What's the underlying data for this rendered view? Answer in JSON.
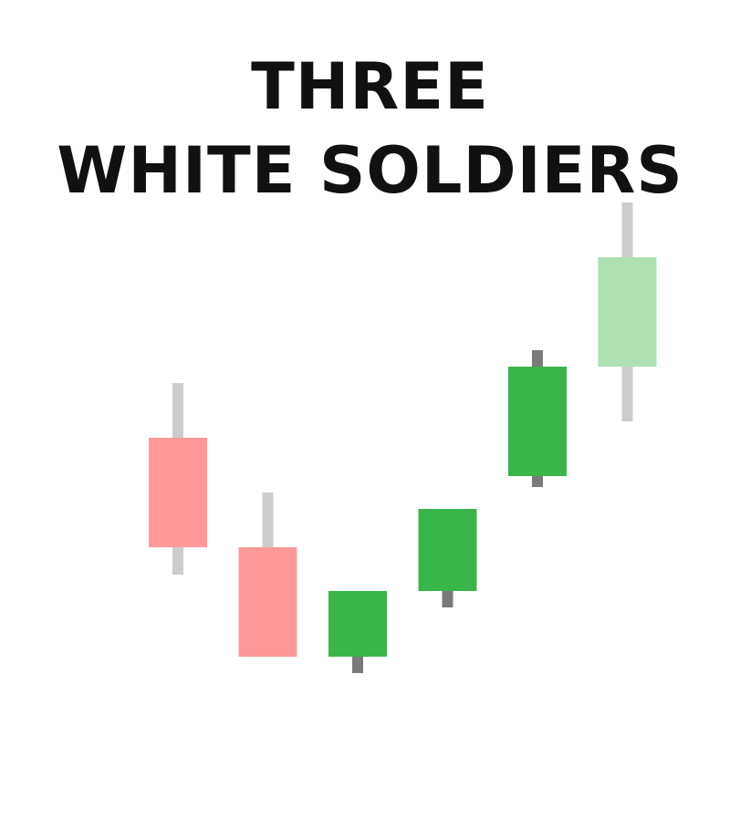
{
  "title_lines": [
    "THREE",
    "WHITE SOLDIERS"
  ],
  "colors": {
    "bearish_body": "#ff9999",
    "bullish_body": "#3ab54a",
    "faded_bullish_body": "#aee0b4",
    "light_wick": "#cccccc",
    "dark_wick": "#7a7a7a"
  },
  "chart_data": {
    "type": "candlestick",
    "title": "THREE WHITE SOLDIERS",
    "xlabel": "",
    "ylabel": "",
    "grid": false,
    "candles": [
      {
        "open": 63,
        "close": 43,
        "high": 73,
        "low": 38,
        "style": "bearish",
        "wick": "light"
      },
      {
        "open": 43,
        "close": 23,
        "high": 53,
        "low": 23,
        "style": "bearish",
        "wick": "light"
      },
      {
        "open": 23,
        "close": 35,
        "high": 35,
        "low": 20,
        "style": "bullish",
        "wick": "dark"
      },
      {
        "open": 35,
        "close": 50,
        "high": 50,
        "low": 32,
        "style": "bullish",
        "wick": "dark"
      },
      {
        "open": 56,
        "close": 76,
        "high": 79,
        "low": 54,
        "style": "bullish",
        "wick": "dark"
      },
      {
        "open": 76,
        "close": 96,
        "high": 106,
        "low": 66,
        "style": "faded_bullish",
        "wick": "light"
      }
    ],
    "ylim": [
      0,
      110
    ]
  }
}
